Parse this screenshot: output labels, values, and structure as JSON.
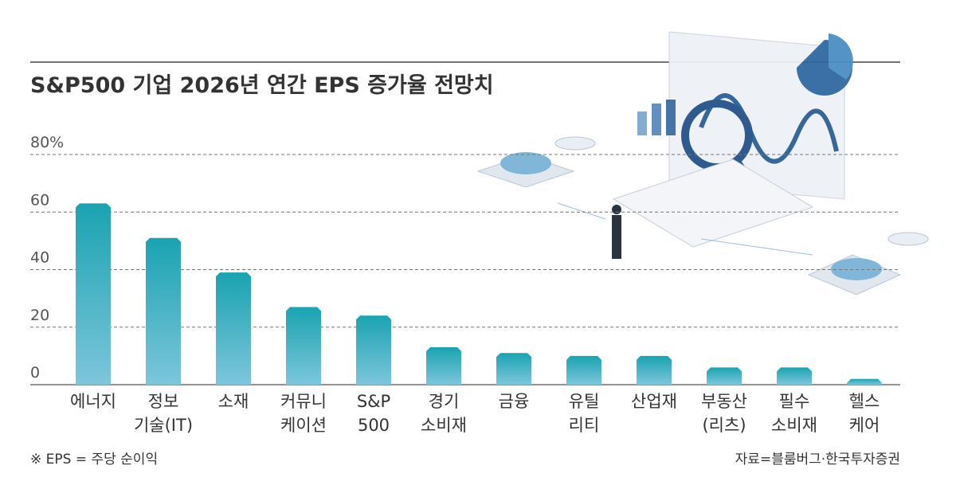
{
  "chart_data": {
    "type": "bar",
    "title": "S&P500 기업 2026년 연간 EPS 증가율 전망치",
    "categories": [
      [
        "에너지"
      ],
      [
        "정보",
        "기술(IT)"
      ],
      [
        "소재"
      ],
      [
        "커뮤니",
        "케이션"
      ],
      [
        "S&P",
        "500"
      ],
      [
        "경기",
        "소비재"
      ],
      [
        "금융"
      ],
      [
        "유틸",
        "리티"
      ],
      [
        "산업재"
      ],
      [
        "부동산",
        "(리츠)"
      ],
      [
        "필수",
        "소비재"
      ],
      [
        "헬스",
        "케어"
      ]
    ],
    "values": [
      63,
      51,
      39,
      27,
      24,
      13,
      11,
      10,
      10,
      6,
      6,
      2
    ],
    "color": "#19a3b1",
    "ylim": [
      0,
      80
    ],
    "yticks": [
      0,
      20,
      40,
      60,
      {
        "value": 80,
        "label": "80%"
      }
    ],
    "grid": true,
    "footnote": "※ EPS = 주당 순이익",
    "source": "자료=블룸버그·한국투자증권"
  }
}
